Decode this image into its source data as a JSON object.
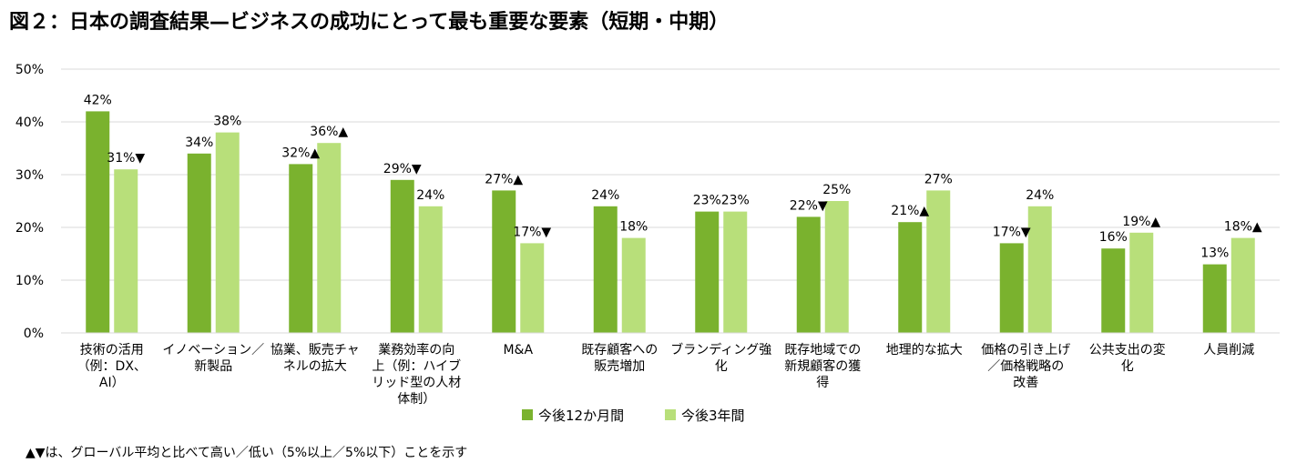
{
  "title": "図２：日本の調査結果—ビジネスの成功にとって最も重要な要素（短期・中期）",
  "footnote": "▲▼は、グローバル平均と比べて高い／低い（5%以上／5%以下）ことを示す",
  "colors": {
    "series1": "#7ab22e",
    "series2": "#b8df7a",
    "grid": "#d9d9d9",
    "text": "#000000"
  },
  "chart_data": {
    "type": "bar",
    "title": "図２：日本の調査結果—ビジネスの成功にとって最も重要な要素（短期・中期）",
    "xlabel": "",
    "ylabel": "",
    "ylim": [
      0,
      50
    ],
    "yticks": [
      0,
      10,
      20,
      30,
      40,
      50
    ],
    "ytick_labels": [
      "0%",
      "10%",
      "20%",
      "30%",
      "40%",
      "50%"
    ],
    "grid": true,
    "legend_position": "bottom-center",
    "categories": [
      [
        "技術の活用",
        "（例：DX、",
        "AI）"
      ],
      [
        "イノベーション／",
        "新製品"
      ],
      [
        "協業、販売チャ",
        "ネルの拡大"
      ],
      [
        "業務効率の向",
        "上（例：ハイブ",
        "リッド型の人材",
        "体制）"
      ],
      [
        "M&A"
      ],
      [
        "既存顧客への",
        "販売増加"
      ],
      [
        "ブランディング強",
        "化"
      ],
      [
        "既存地域での",
        "新規顧客の獲",
        "得"
      ],
      [
        "地理的な拡大"
      ],
      [
        "価格の引き上げ",
        "／価格戦略の",
        "改善"
      ],
      [
        "公共支出の変",
        "化"
      ],
      [
        "人員削減"
      ]
    ],
    "series": [
      {
        "name": "今後12か月間",
        "values": [
          42,
          34,
          32,
          29,
          27,
          24,
          23,
          22,
          21,
          17,
          16,
          13
        ],
        "labels": [
          "42%",
          "34%",
          "32%▲",
          "29%▼",
          "27%▲",
          "24%",
          "23%",
          "22%▼",
          "21%▲",
          "17%▼",
          "16%",
          "13%"
        ]
      },
      {
        "name": "今後3年間",
        "values": [
          31,
          38,
          36,
          24,
          17,
          18,
          23,
          25,
          27,
          24,
          19,
          18
        ],
        "labels": [
          "31%▼",
          "38%",
          "36%▲",
          "24%",
          "17%▼",
          "18%",
          "23%",
          "25%",
          "27%",
          "24%",
          "19%▲",
          "18%▲"
        ]
      }
    ]
  }
}
